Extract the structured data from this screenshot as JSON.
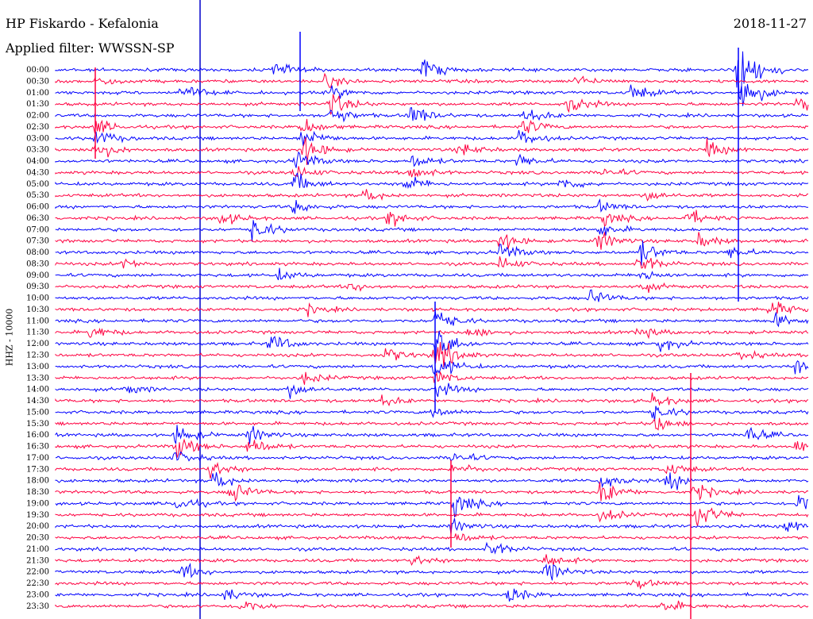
{
  "header": {
    "station": "HP Fiskardo - Kefalonia",
    "filter": "Applied filter: WWSSN-SP",
    "date": "2018-11-27"
  },
  "axis_label": "HHZ - 10000",
  "colors": {
    "trace_a": "#0000ff",
    "trace_b": "#ff0040",
    "marker": "#0000cc"
  },
  "times": [
    "00:00",
    "00:30",
    "01:00",
    "01:30",
    "02:00",
    "02:30",
    "03:00",
    "03:30",
    "04:00",
    "04:30",
    "05:00",
    "05:30",
    "06:00",
    "06:30",
    "07:00",
    "07:30",
    "08:00",
    "08:30",
    "09:00",
    "09:30",
    "10:00",
    "10:30",
    "11:00",
    "11:30",
    "12:00",
    "12:30",
    "13:00",
    "13:30",
    "14:00",
    "14:30",
    "15:00",
    "15:30",
    "16:00",
    "16:30",
    "17:00",
    "17:30",
    "18:00",
    "18:30",
    "19:00",
    "19:30",
    "20:00",
    "20:30",
    "21:00",
    "21:30",
    "22:00",
    "22:30",
    "23:00",
    "23:30"
  ]
}
